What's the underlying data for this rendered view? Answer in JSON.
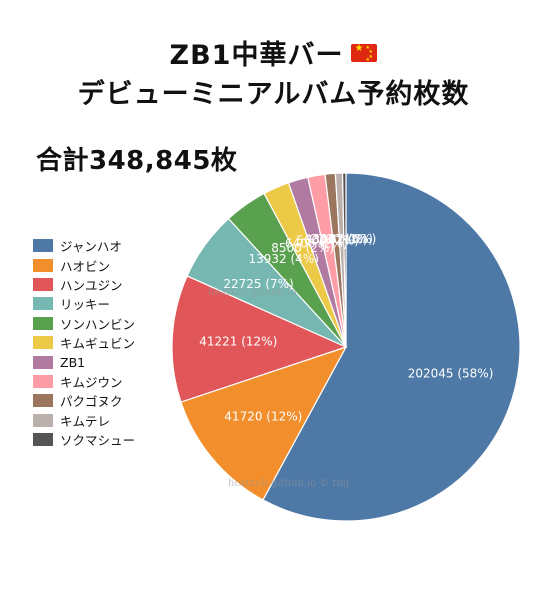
{
  "title": {
    "line1": "ZB1中華バー",
    "line2": "デビューミニアルバム予約枚数"
  },
  "flag_icon": "china-flag-icon",
  "total_label": "合計348,845枚",
  "watermarks": {
    "upper": "heatxch.github.io",
    "lower": "hcatxch.github.io © tmj"
  },
  "chart_data": {
    "type": "pie",
    "title": "",
    "total": 348845,
    "legend_position": "left",
    "start_angle_deg": 0,
    "direction": "clockwise",
    "slices": [
      {
        "name": "ジャンハオ",
        "value": 202045,
        "label": "202045 (58%)",
        "color": "#4e79a7"
      },
      {
        "name": "ハオビン",
        "value": 41720,
        "label": "41720 (12%)",
        "color": "#f28e2b"
      },
      {
        "name": "ハンユジン",
        "value": 41221,
        "label": "41221 (12%)",
        "color": "#e15759"
      },
      {
        "name": "リッキー",
        "value": 22725,
        "label": "22725 (7%)",
        "color": "#76b7b2"
      },
      {
        "name": "ソンハンビン",
        "value": 13932,
        "label": "13932 (4%)",
        "color": "#59a14f"
      },
      {
        "name": "キムギュビン",
        "value": 8500,
        "label": "8500 (2%)",
        "color": "#edc948"
      },
      {
        "name": "ZB1",
        "value": 6400,
        "label": "6400 (2%)",
        "color": "#b07aa1"
      },
      {
        "name": "キムジウン",
        "value": 5600,
        "label": "5600 (2%)",
        "color": "#ff9da7"
      },
      {
        "name": "パクゴヌク",
        "value": 3300,
        "label": "3300 (1%)",
        "color": "#9c755f"
      },
      {
        "name": "キムテレ",
        "value": 2300,
        "label": "2300 (1%)",
        "color": "#bab0ac"
      },
      {
        "name": "ソクマシュー",
        "value": 1102,
        "label": "1102 (0%)",
        "color": "#555555"
      }
    ]
  }
}
